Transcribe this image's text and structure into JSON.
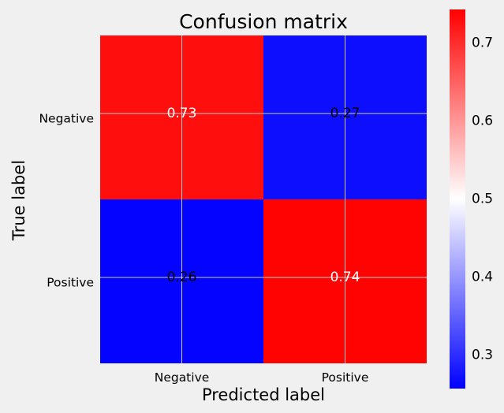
{
  "chart_data": {
    "type": "heatmap",
    "title": "Confusion matrix",
    "xlabel": "Predicted label",
    "ylabel": "True label",
    "x_categories": [
      "Negative",
      "Positive"
    ],
    "y_categories": [
      "Negative",
      "Positive"
    ],
    "values": [
      [
        0.73,
        0.27
      ],
      [
        0.26,
        0.74
      ]
    ],
    "cell_labels": [
      [
        "0.73",
        "0.27"
      ],
      [
        "0.26",
        "0.74"
      ]
    ],
    "colorscale": {
      "low": "#0000ff",
      "mid": "#ffffff",
      "high": "#ff0000"
    },
    "colorbar": {
      "range": [
        0.257,
        0.743
      ],
      "ticks": [
        0.3,
        0.4,
        0.5,
        0.6,
        0.7
      ],
      "tick_labels": [
        "0.3",
        "0.4",
        "0.5",
        "0.6",
        "0.7"
      ]
    },
    "grid": true
  }
}
